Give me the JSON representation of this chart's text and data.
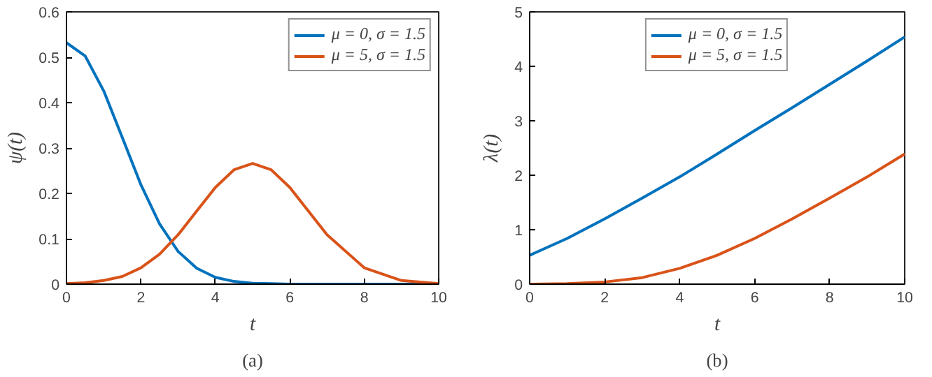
{
  "chart_data": [
    {
      "type": "line",
      "xlabel": "t",
      "ylabel": "ψ(t)",
      "annotations": [
        "(a)"
      ],
      "legend": "top right",
      "grid": false,
      "x": [
        0,
        0.5,
        1,
        1.5,
        2,
        2.5,
        3,
        3.5,
        4,
        4.5,
        5,
        5.5,
        6,
        7,
        8,
        9,
        10
      ],
      "xlim": [
        0,
        10
      ],
      "xticks": [
        0,
        2,
        4,
        6,
        8,
        10
      ],
      "ylim": [
        0,
        0.6
      ],
      "yticks": [
        0,
        0.1,
        0.2,
        0.3,
        0.4,
        0.5,
        0.6
      ],
      "series": [
        {
          "name": "μ = 0, σ = 1.5",
          "color": "#0072bd",
          "values": [
            0.532,
            0.503,
            0.426,
            0.323,
            0.219,
            0.133,
            0.072,
            0.035,
            0.015,
            0.006,
            0.002,
            0.001,
            0,
            0,
            0,
            0,
            0
          ]
        },
        {
          "name": "μ = 5, σ = 1.5",
          "color": "#d95319",
          "values": [
            0.001,
            0.003,
            0.008,
            0.017,
            0.036,
            0.066,
            0.109,
            0.161,
            0.213,
            0.252,
            0.266,
            0.252,
            0.213,
            0.109,
            0.036,
            0.008,
            0.001
          ]
        }
      ]
    },
    {
      "type": "line",
      "xlabel": "t",
      "ylabel": "λ(t)",
      "annotations": [
        "(b)"
      ],
      "legend": "top",
      "grid": false,
      "x": [
        0,
        1,
        2,
        3,
        4,
        5,
        6,
        7,
        8,
        9,
        10
      ],
      "xlim": [
        0,
        10
      ],
      "xticks": [
        0,
        2,
        4,
        6,
        8,
        10
      ],
      "ylim": [
        0,
        5
      ],
      "yticks": [
        0,
        1,
        2,
        3,
        4,
        5
      ],
      "series": [
        {
          "name": "μ = 0, σ = 1.5",
          "color": "#0072bd",
          "values": [
            0.53,
            0.84,
            1.2,
            1.58,
            1.97,
            2.39,
            2.82,
            3.24,
            3.67,
            4.1,
            4.54
          ]
        },
        {
          "name": "μ = 5, σ = 1.5",
          "color": "#d95319",
          "values": [
            0,
            0.01,
            0.04,
            0.12,
            0.29,
            0.53,
            0.84,
            1.2,
            1.58,
            1.97,
            2.39
          ]
        }
      ]
    }
  ]
}
